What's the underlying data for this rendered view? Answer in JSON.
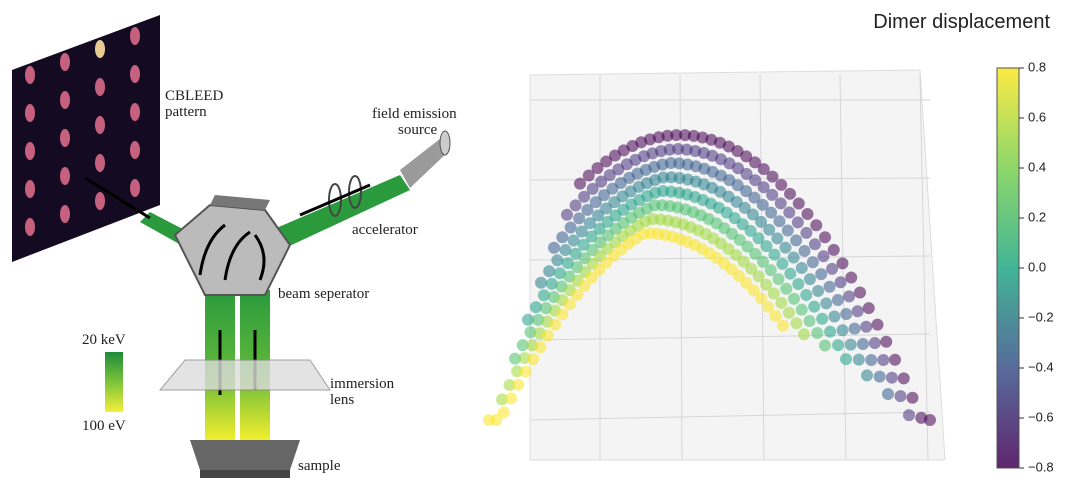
{
  "schematic": {
    "pattern_label": [
      "CBLEED",
      "pattern"
    ],
    "source_label": [
      "field emission",
      "source"
    ],
    "accelerator_label": "accelerator",
    "separator_label": "beam seperator",
    "lens_label": [
      "immersion",
      "lens"
    ],
    "sample_label": "sample",
    "energy_scale": {
      "top": "20 keV",
      "bottom": "100 eV"
    }
  },
  "colorbar": {
    "title": "Dimer displacement",
    "lim": [
      -0.8,
      0.8
    ],
    "ticks": [
      0.8,
      0.6,
      0.4,
      0.2,
      {
        "value": 0,
        "label": "0.0"
      },
      {
        "value": -0.2,
        "label": "−0.2"
      },
      {
        "value": -0.4,
        "label": "−0.4"
      },
      {
        "value": -0.6,
        "label": "−0.6"
      },
      {
        "value": -0.8,
        "label": "−0.8"
      }
    ]
  }
}
